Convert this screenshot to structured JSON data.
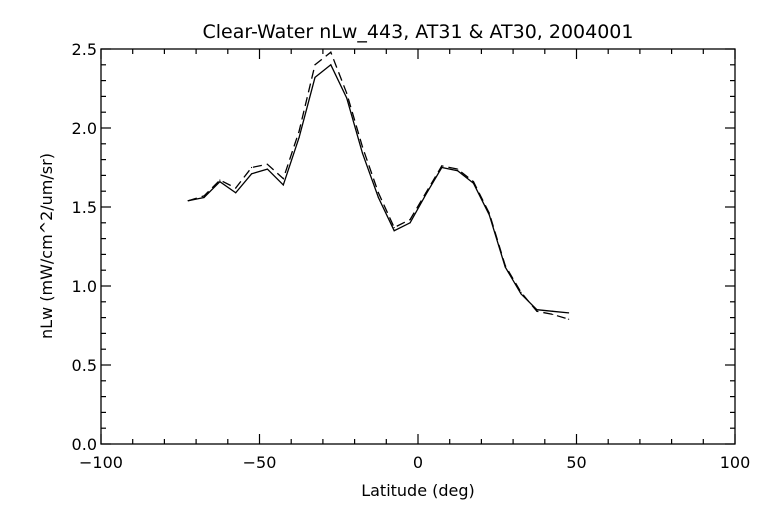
{
  "chart_data": {
    "type": "line",
    "title": "Clear-Water nLw_443, AT31 & AT30, 2004001",
    "xlabel": "Latitude (deg)",
    "ylabel": "nLw (mW/cm^2/um/sr)",
    "xlim": [
      -100,
      100
    ],
    "ylim": [
      0,
      2.5
    ],
    "xticks": [
      -100,
      -50,
      0,
      50,
      100
    ],
    "xtick_labels": [
      "−100",
      "−50",
      "0",
      "50",
      "100"
    ],
    "yticks": [
      0,
      0.5,
      1.0,
      1.5,
      2.0,
      2.5
    ],
    "ytick_labels": [
      "0.0",
      "0.5",
      "1.0",
      "1.5",
      "2.0",
      "2.5"
    ],
    "grid": false,
    "x": [
      -72.5,
      -67.5,
      -62.5,
      -57.5,
      -52.5,
      -47.5,
      -42.5,
      -37.5,
      -32.5,
      -27.5,
      -22.5,
      -17.5,
      -12.5,
      -7.5,
      -2.5,
      2.5,
      7.5,
      12.5,
      17.5,
      22.5,
      27.5,
      32.5,
      37.5,
      42.5,
      47.5
    ],
    "series": [
      {
        "name": "AT31",
        "style": "solid",
        "values": [
          1.54,
          1.56,
          1.66,
          1.59,
          1.71,
          1.74,
          1.64,
          1.94,
          2.32,
          2.4,
          2.19,
          1.84,
          1.56,
          1.35,
          1.4,
          1.58,
          1.75,
          1.73,
          1.65,
          1.45,
          1.12,
          0.95,
          0.85,
          0.84,
          0.83
        ]
      },
      {
        "name": "AT30",
        "style": "dashed",
        "values": [
          1.54,
          1.57,
          1.67,
          1.62,
          1.75,
          1.77,
          1.68,
          1.98,
          2.4,
          2.48,
          2.22,
          1.88,
          1.59,
          1.37,
          1.42,
          1.59,
          1.76,
          1.74,
          1.66,
          1.46,
          1.13,
          0.96,
          0.84,
          0.82,
          0.79
        ]
      }
    ]
  }
}
